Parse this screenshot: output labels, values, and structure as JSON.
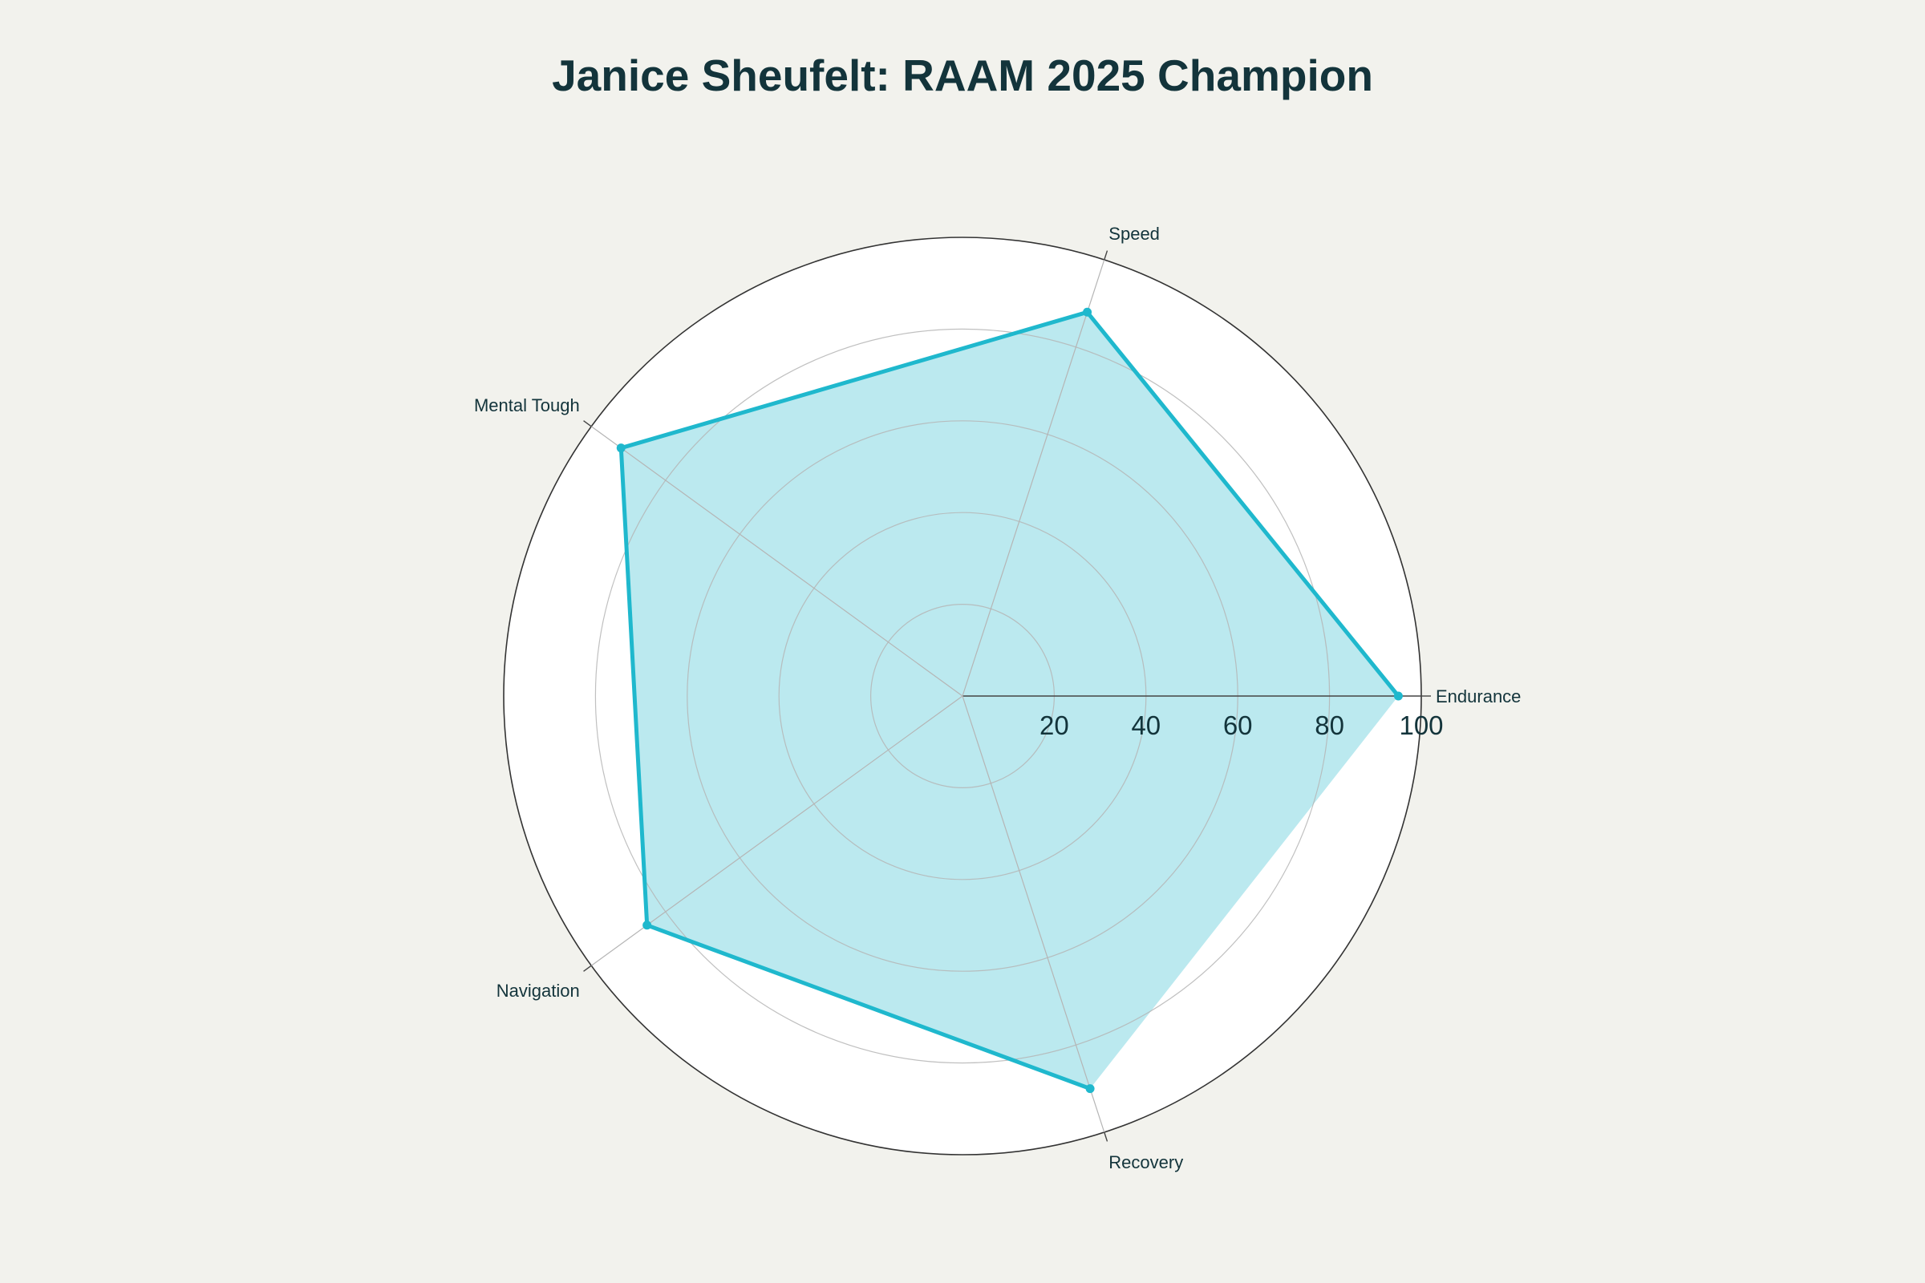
{
  "chart_data": {
    "type": "radar",
    "title": "Janice Sheufelt: RAAM 2025 Champion",
    "categories": [
      "Endurance",
      "Speed",
      "Mental Tough",
      "Navigation",
      "Recovery"
    ],
    "series": [
      {
        "values": [
          95,
          88,
          92,
          85,
          90
        ]
      }
    ],
    "radial_range": [
      0,
      100
    ],
    "radial_ticks": [
      20,
      40,
      60,
      80,
      100
    ],
    "grid": true,
    "legend": "none",
    "colors": {
      "line": "#1fb8cd",
      "fill": "#bbe9ef",
      "background": "#f2f2ed",
      "plot_background": "#ffffff",
      "gridline": "#b5b5b5",
      "outer_ring": "#333333",
      "text": "#13343b"
    }
  }
}
